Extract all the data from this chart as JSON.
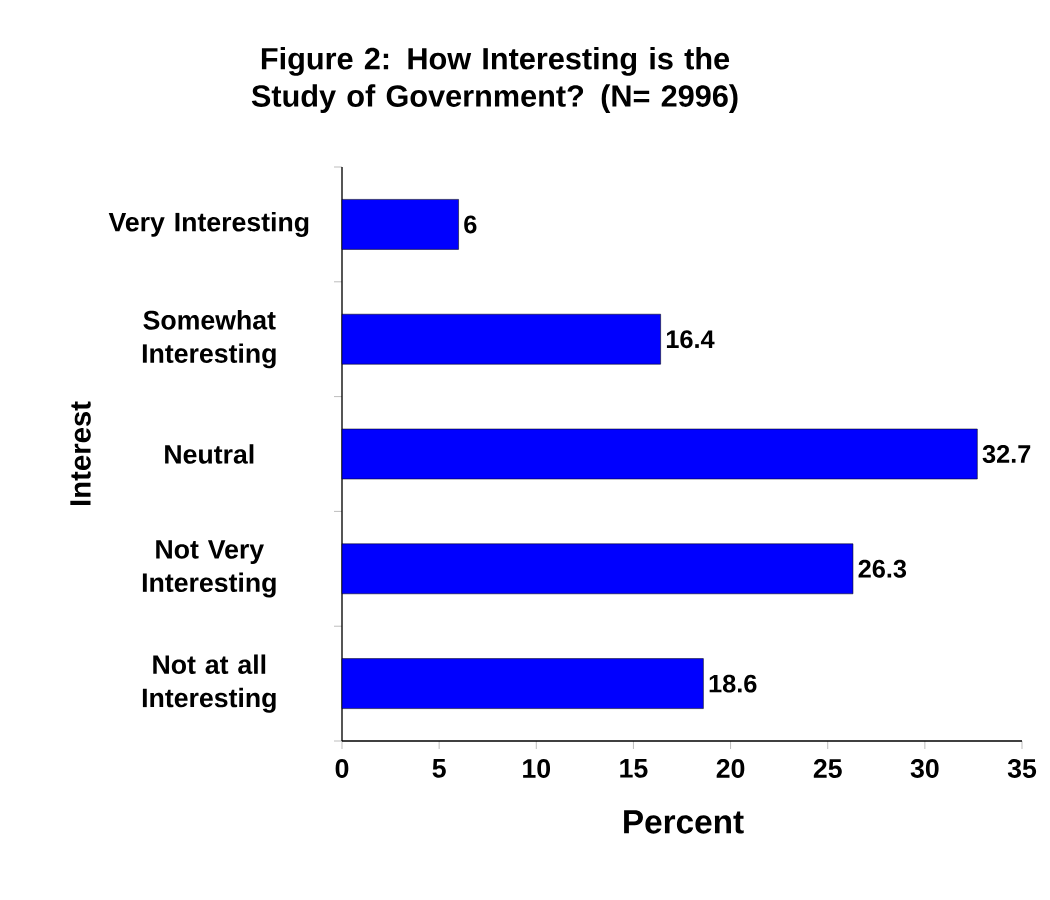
{
  "chart_data": {
    "type": "bar",
    "orientation": "horizontal",
    "title": "Figure 2: How Interesting is the Study of Government? (N= 2996)",
    "xlabel": "Percent",
    "ylabel": "Interest",
    "categories": [
      "Very Interesting",
      "Somewhat Interesting",
      "Neutral",
      "Not Very Interesting",
      "Not at all Interesting"
    ],
    "values": [
      6,
      16.4,
      32.7,
      26.3,
      18.6
    ],
    "color": "#0000ff",
    "data_labels": true,
    "xlim": [
      0,
      35
    ],
    "xticks": [
      0,
      5,
      10,
      15,
      20,
      25,
      30,
      35
    ]
  }
}
